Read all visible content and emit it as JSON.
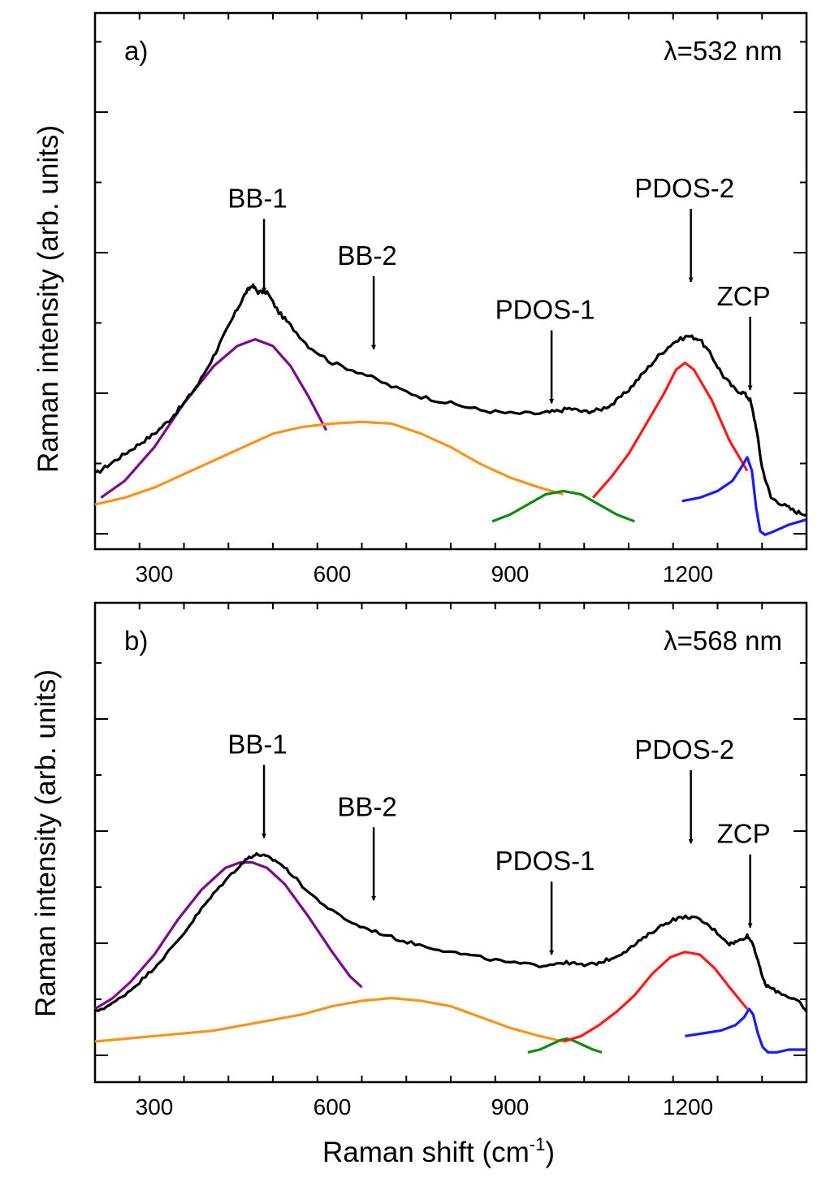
{
  "figure": {
    "ylabel": "Raman intensity (arb. units)",
    "xlabel_main": "Raman shift (cm",
    "xlabel_sup": "-1",
    "xlabel_end": ")"
  },
  "chart_data": [
    {
      "type": "line",
      "panel_label": "a)",
      "wavelength_label": "λ=532 nm",
      "x_ticks": [
        300,
        600,
        900,
        1200
      ],
      "x_tick_labels": [
        "300",
        "600",
        "900",
        "1200"
      ],
      "xlim": [
        200,
        1400
      ],
      "ylim": [
        0,
        1
      ],
      "grid": false,
      "legend": "none",
      "arrows": [
        {
          "label": "BB-1",
          "x": 485,
          "tip_y": 0.7
        },
        {
          "label": "BB-2",
          "x": 670,
          "tip_y": 0.53
        },
        {
          "label": "PDOS-1",
          "x": 970,
          "tip_y": 0.37
        },
        {
          "label": "PDOS-2",
          "x": 1205,
          "tip_y": 0.73
        },
        {
          "label": "ZCP",
          "x": 1305,
          "tip_y": 0.41
        }
      ],
      "experimental": {
        "color": "#000000",
        "points": [
          [
            200,
            0.16
          ],
          [
            225,
            0.19
          ],
          [
            250,
            0.22
          ],
          [
            275,
            0.25
          ],
          [
            300,
            0.28
          ],
          [
            325,
            0.32
          ],
          [
            350,
            0.37
          ],
          [
            375,
            0.43
          ],
          [
            400,
            0.51
          ],
          [
            420,
            0.58
          ],
          [
            440,
            0.65
          ],
          [
            455,
            0.7
          ],
          [
            465,
            0.72
          ],
          [
            475,
            0.7
          ],
          [
            490,
            0.7
          ],
          [
            510,
            0.64
          ],
          [
            530,
            0.6
          ],
          [
            560,
            0.54
          ],
          [
            600,
            0.49
          ],
          [
            650,
            0.46
          ],
          [
            700,
            0.42
          ],
          [
            750,
            0.39
          ],
          [
            800,
            0.37
          ],
          [
            850,
            0.35
          ],
          [
            900,
            0.34
          ],
          [
            950,
            0.34
          ],
          [
            975,
            0.345
          ],
          [
            1000,
            0.355
          ],
          [
            1025,
            0.345
          ],
          [
            1050,
            0.35
          ],
          [
            1075,
            0.37
          ],
          [
            1100,
            0.41
          ],
          [
            1125,
            0.46
          ],
          [
            1150,
            0.51
          ],
          [
            1175,
            0.55
          ],
          [
            1200,
            0.57
          ],
          [
            1220,
            0.56
          ],
          [
            1240,
            0.51
          ],
          [
            1260,
            0.45
          ],
          [
            1280,
            0.41
          ],
          [
            1295,
            0.4
          ],
          [
            1305,
            0.38
          ],
          [
            1315,
            0.3
          ],
          [
            1325,
            0.18
          ],
          [
            1340,
            0.09
          ],
          [
            1360,
            0.07
          ],
          [
            1380,
            0.05
          ],
          [
            1400,
            0.04
          ]
        ]
      },
      "components": [
        {
          "name": "BB-1",
          "color": "#7b0b8e",
          "points": [
            [
              210,
              0.09
            ],
            [
              250,
              0.14
            ],
            [
              300,
              0.24
            ],
            [
              350,
              0.37
            ],
            [
              400,
              0.48
            ],
            [
              440,
              0.54
            ],
            [
              470,
              0.56
            ],
            [
              500,
              0.54
            ],
            [
              530,
              0.48
            ],
            [
              560,
              0.39
            ],
            [
              590,
              0.29
            ]
          ]
        },
        {
          "name": "BB-2",
          "color": "#f7941d",
          "points": [
            [
              200,
              0.07
            ],
            [
              250,
              0.09
            ],
            [
              300,
              0.12
            ],
            [
              350,
              0.16
            ],
            [
              400,
              0.2
            ],
            [
              450,
              0.24
            ],
            [
              500,
              0.28
            ],
            [
              550,
              0.3
            ],
            [
              600,
              0.31
            ],
            [
              650,
              0.315
            ],
            [
              700,
              0.31
            ],
            [
              750,
              0.28
            ],
            [
              800,
              0.24
            ],
            [
              850,
              0.19
            ],
            [
              900,
              0.15
            ],
            [
              950,
              0.12
            ],
            [
              990,
              0.1
            ]
          ]
        },
        {
          "name": "PDOS-1",
          "color": "#138a13",
          "points": [
            [
              870,
              0.02
            ],
            [
              900,
              0.04
            ],
            [
              930,
              0.07
            ],
            [
              960,
              0.1
            ],
            [
              990,
              0.11
            ],
            [
              1020,
              0.1
            ],
            [
              1050,
              0.07
            ],
            [
              1080,
              0.04
            ],
            [
              1110,
              0.02
            ]
          ]
        },
        {
          "name": "PDOS-2",
          "color": "#ff1a1a",
          "points": [
            [
              1040,
              0.09
            ],
            [
              1070,
              0.15
            ],
            [
              1100,
              0.22
            ],
            [
              1130,
              0.31
            ],
            [
              1160,
              0.4
            ],
            [
              1180,
              0.47
            ],
            [
              1195,
              0.49
            ],
            [
              1210,
              0.47
            ],
            [
              1240,
              0.38
            ],
            [
              1270,
              0.26
            ],
            [
              1300,
              0.17
            ]
          ]
        },
        {
          "name": "ZCP",
          "color": "#1a1aff",
          "points": [
            [
              1190,
              0.08
            ],
            [
              1220,
              0.09
            ],
            [
              1250,
              0.11
            ],
            [
              1275,
              0.14
            ],
            [
              1290,
              0.18
            ],
            [
              1300,
              0.21
            ],
            [
              1308,
              0.17
            ],
            [
              1315,
              0.06
            ],
            [
              1322,
              -0.01
            ],
            [
              1330,
              -0.02
            ],
            [
              1345,
              -0.01
            ],
            [
              1370,
              0.01
            ],
            [
              1390,
              0.02
            ],
            [
              1400,
              0.025
            ]
          ]
        }
      ]
    },
    {
      "type": "line",
      "panel_label": "b)",
      "wavelength_label": "λ=568 nm",
      "x_ticks": [
        300,
        600,
        900,
        1200
      ],
      "x_tick_labels": [
        "300",
        "600",
        "900",
        "1200"
      ],
      "xlim": [
        200,
        1400
      ],
      "ylim": [
        0,
        1
      ],
      "grid": false,
      "legend": "none",
      "arrows": [
        {
          "label": "BB-1",
          "x": 485,
          "tip_y": 0.78
        },
        {
          "label": "BB-2",
          "x": 670,
          "tip_y": 0.55
        },
        {
          "label": "PDOS-1",
          "x": 970,
          "tip_y": 0.35
        },
        {
          "label": "PDOS-2",
          "x": 1205,
          "tip_y": 0.76
        },
        {
          "label": "ZCP",
          "x": 1305,
          "tip_y": 0.45
        }
      ],
      "experimental": {
        "color": "#000000",
        "points": [
          [
            200,
            0.14
          ],
          [
            230,
            0.17
          ],
          [
            260,
            0.22
          ],
          [
            290,
            0.28
          ],
          [
            320,
            0.35
          ],
          [
            350,
            0.43
          ],
          [
            380,
            0.52
          ],
          [
            410,
            0.6
          ],
          [
            440,
            0.67
          ],
          [
            460,
            0.71
          ],
          [
            475,
            0.72
          ],
          [
            490,
            0.71
          ],
          [
            510,
            0.69
          ],
          [
            530,
            0.65
          ],
          [
            560,
            0.58
          ],
          [
            600,
            0.51
          ],
          [
            640,
            0.46
          ],
          [
            680,
            0.43
          ],
          [
            720,
            0.4
          ],
          [
            760,
            0.38
          ],
          [
            800,
            0.36
          ],
          [
            850,
            0.34
          ],
          [
            900,
            0.32
          ],
          [
            950,
            0.31
          ],
          [
            985,
            0.32
          ],
          [
            1000,
            0.32
          ],
          [
            1025,
            0.31
          ],
          [
            1050,
            0.32
          ],
          [
            1075,
            0.34
          ],
          [
            1100,
            0.37
          ],
          [
            1125,
            0.41
          ],
          [
            1150,
            0.45
          ],
          [
            1175,
            0.48
          ],
          [
            1200,
            0.49
          ],
          [
            1220,
            0.48
          ],
          [
            1245,
            0.44
          ],
          [
            1270,
            0.39
          ],
          [
            1285,
            0.4
          ],
          [
            1300,
            0.42
          ],
          [
            1310,
            0.39
          ],
          [
            1320,
            0.31
          ],
          [
            1330,
            0.24
          ],
          [
            1345,
            0.22
          ],
          [
            1365,
            0.2
          ],
          [
            1385,
            0.18
          ],
          [
            1400,
            0.14
          ]
        ]
      },
      "components": [
        {
          "name": "BB-1",
          "color": "#7b0b8e",
          "points": [
            [
              200,
              0.15
            ],
            [
              230,
              0.19
            ],
            [
              260,
              0.25
            ],
            [
              300,
              0.35
            ],
            [
              340,
              0.48
            ],
            [
              380,
              0.59
            ],
            [
              420,
              0.67
            ],
            [
              445,
              0.69
            ],
            [
              465,
              0.69
            ],
            [
              490,
              0.67
            ],
            [
              520,
              0.61
            ],
            [
              560,
              0.49
            ],
            [
              600,
              0.36
            ],
            [
              630,
              0.27
            ],
            [
              650,
              0.23
            ]
          ]
        },
        {
          "name": "BB-2",
          "color": "#f7941d",
          "points": [
            [
              200,
              0.03
            ],
            [
              250,
              0.04
            ],
            [
              300,
              0.05
            ],
            [
              350,
              0.06
            ],
            [
              400,
              0.07
            ],
            [
              450,
              0.09
            ],
            [
              500,
              0.11
            ],
            [
              550,
              0.13
            ],
            [
              600,
              0.16
            ],
            [
              650,
              0.18
            ],
            [
              700,
              0.19
            ],
            [
              750,
              0.18
            ],
            [
              800,
              0.16
            ],
            [
              850,
              0.12
            ],
            [
              900,
              0.08
            ],
            [
              950,
              0.05
            ],
            [
              990,
              0.03
            ]
          ]
        },
        {
          "name": "PDOS-1",
          "color": "#138a13",
          "points": [
            [
              930,
              -0.01
            ],
            [
              950,
              0.0
            ],
            [
              970,
              0.02
            ],
            [
              985,
              0.035
            ],
            [
              995,
              0.04
            ],
            [
              1005,
              0.035
            ],
            [
              1020,
              0.02
            ],
            [
              1040,
              0.0
            ],
            [
              1055,
              -0.01
            ]
          ]
        },
        {
          "name": "PDOS-2",
          "color": "#ff1a1a",
          "points": [
            [
              990,
              0.03
            ],
            [
              1020,
              0.05
            ],
            [
              1050,
              0.09
            ],
            [
              1080,
              0.14
            ],
            [
              1110,
              0.2
            ],
            [
              1140,
              0.28
            ],
            [
              1170,
              0.34
            ],
            [
              1195,
              0.36
            ],
            [
              1220,
              0.35
            ],
            [
              1245,
              0.3
            ],
            [
              1270,
              0.23
            ],
            [
              1300,
              0.15
            ]
          ]
        },
        {
          "name": "ZCP",
          "color": "#1a1aff",
          "points": [
            [
              1195,
              0.05
            ],
            [
              1225,
              0.06
            ],
            [
              1255,
              0.07
            ],
            [
              1280,
              0.09
            ],
            [
              1295,
              0.12
            ],
            [
              1303,
              0.15
            ],
            [
              1310,
              0.13
            ],
            [
              1318,
              0.06
            ],
            [
              1326,
              0.01
            ],
            [
              1335,
              -0.01
            ],
            [
              1350,
              -0.01
            ],
            [
              1370,
              0.0
            ],
            [
              1390,
              0.0
            ],
            [
              1400,
              0.0
            ]
          ]
        }
      ]
    }
  ]
}
